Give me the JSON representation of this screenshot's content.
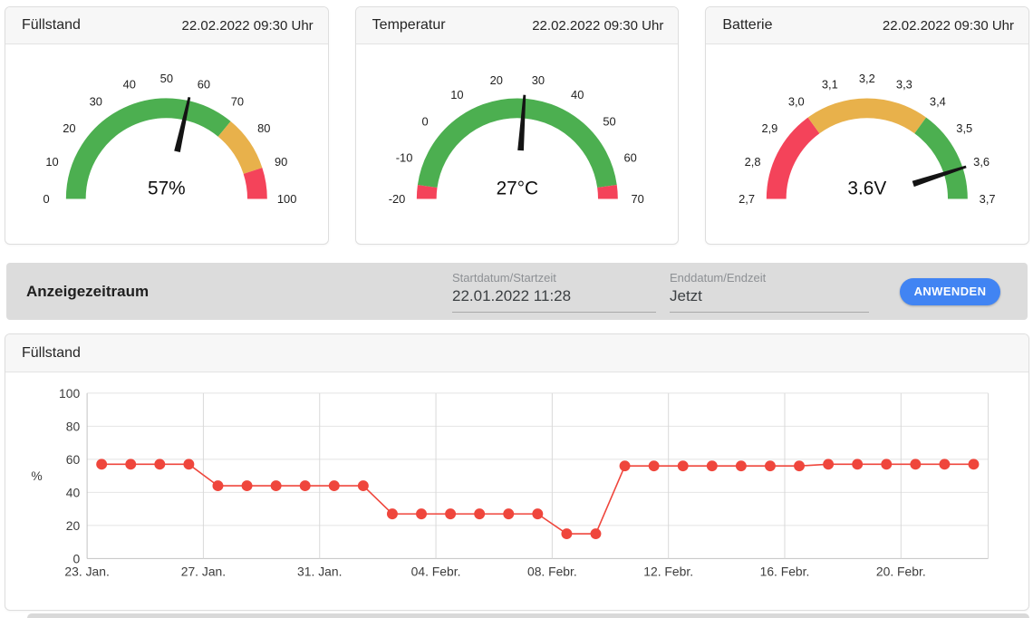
{
  "gauges": [
    {
      "title": "Füllstand",
      "timestamp": "22.02.2022 09:30 Uhr",
      "min": 0,
      "max": 100,
      "value": 57,
      "value_label": "57%",
      "tick_values": [
        0,
        10,
        20,
        30,
        40,
        50,
        60,
        70,
        80,
        90,
        100
      ],
      "tick_labels": [
        "0",
        "10",
        "20",
        "30",
        "40",
        "50",
        "60",
        "70",
        "80",
        "90",
        "100"
      ],
      "segments": [
        {
          "from": 0,
          "to": 72,
          "color": "#4caf50"
        },
        {
          "from": 72,
          "to": 90,
          "color": "#e8b14b"
        },
        {
          "from": 90,
          "to": 100,
          "color": "#f4435a"
        }
      ]
    },
    {
      "title": "Temperatur",
      "timestamp": "22.02.2022 09:30 Uhr",
      "min": -20,
      "max": 70,
      "value": 27,
      "value_label": "27°C",
      "tick_values": [
        -20,
        -10,
        0,
        10,
        20,
        30,
        40,
        50,
        60,
        70
      ],
      "tick_labels": [
        "-20",
        "-10",
        "0",
        "10",
        "20",
        "30",
        "40",
        "50",
        "60",
        "70"
      ],
      "segments": [
        {
          "from": -20,
          "to": -16,
          "color": "#f4435a"
        },
        {
          "from": -16,
          "to": 66,
          "color": "#4caf50"
        },
        {
          "from": 66,
          "to": 70,
          "color": "#f4435a"
        }
      ]
    },
    {
      "title": "Batterie",
      "timestamp": "22.02.2022 09:30 Uhr",
      "min": 2.7,
      "max": 3.7,
      "value": 3.6,
      "value_label": "3.6V",
      "tick_values": [
        2.7,
        2.8,
        2.9,
        3.0,
        3.1,
        3.2,
        3.3,
        3.4,
        3.5,
        3.6,
        3.7
      ],
      "tick_labels": [
        "2,7",
        "2,8",
        "2,9",
        "3,0",
        "3,1",
        "3,2",
        "3,3",
        "3,4",
        "3,5",
        "3,6",
        "3,7"
      ],
      "segments": [
        {
          "from": 2.7,
          "to": 3.0,
          "color": "#f4435a"
        },
        {
          "from": 3.0,
          "to": 3.4,
          "color": "#e8b14b"
        },
        {
          "from": 3.4,
          "to": 3.7,
          "color": "#4caf50"
        }
      ]
    }
  ],
  "period_bar": {
    "title": "Anzeigezeitraum",
    "start_label": "Startdatum/Startzeit",
    "start_value": "22.01.2022 11:28",
    "end_label": "Enddatum/Endzeit",
    "end_value": "Jetzt",
    "apply_label": "ANWENDEN",
    "button_color": "#4184f3"
  },
  "chart_panel": {
    "title": "Füllstand"
  },
  "chart_data": {
    "type": "line",
    "title": "Füllstand",
    "xlabel": "",
    "ylabel": "%",
    "ylim": [
      0,
      100
    ],
    "y_ticks": [
      0,
      20,
      40,
      60,
      80,
      100
    ],
    "x_axis_range_days": [
      0,
      31
    ],
    "x_tick_days": [
      0,
      4,
      8,
      12,
      16,
      20,
      24,
      28
    ],
    "x_tick_labels": [
      "23. Jan.",
      "27. Jan.",
      "31. Jan.",
      "04. Febr.",
      "08. Febr.",
      "12. Febr.",
      "16. Febr.",
      "20. Febr."
    ],
    "x_days": [
      0.5,
      1.5,
      2.5,
      3.5,
      4.5,
      5.5,
      6.5,
      7.5,
      8.5,
      9.5,
      10.5,
      11.5,
      12.5,
      13.5,
      14.5,
      15.5,
      16.5,
      17.5,
      18.5,
      19.5,
      20.5,
      21.5,
      22.5,
      23.5,
      24.5,
      25.5,
      26.5,
      27.5,
      28.5,
      29.5,
      30.5
    ],
    "values": [
      57,
      57,
      57,
      57,
      44,
      44,
      44,
      44,
      44,
      44,
      27,
      27,
      27,
      27,
      27,
      27,
      15,
      15,
      56,
      56,
      56,
      56,
      56,
      56,
      56,
      57,
      57,
      57,
      57,
      57,
      57
    ],
    "line_color": "#ef463c",
    "grid": true,
    "legend": false
  },
  "colors": {
    "green": "#4caf50",
    "orange": "#e8b14b",
    "red": "#f4435a",
    "needle": "#141414",
    "grid": "#e4e4e4",
    "vgrid": "#d9d9d9",
    "axis": "#c2c2c2"
  }
}
